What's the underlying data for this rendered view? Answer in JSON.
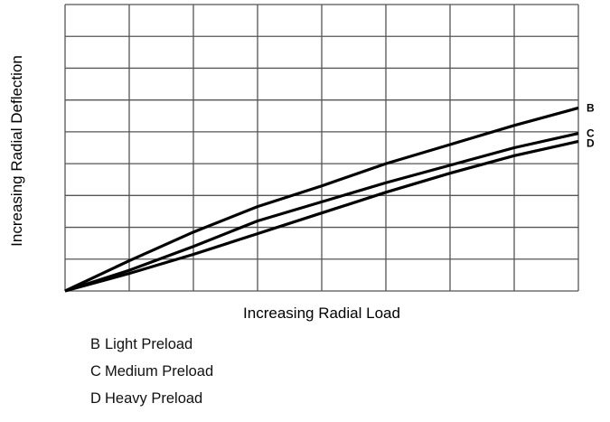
{
  "chart_data": {
    "type": "line",
    "xlabel": "Increasing Radial Load",
    "ylabel": "Increasing Radial Deflection",
    "xlim": [
      0,
      8
    ],
    "ylim": [
      0,
      9
    ],
    "grid": true,
    "x_ticks_labeled": false,
    "y_ticks_labeled": false,
    "series": [
      {
        "name": "B",
        "x": [
          0,
          1,
          2,
          3,
          4,
          5,
          6,
          7,
          8
        ],
        "y": [
          0,
          0.95,
          1.85,
          2.65,
          3.3,
          4.0,
          4.6,
          5.2,
          5.75
        ]
      },
      {
        "name": "C",
        "x": [
          0,
          1,
          2,
          3,
          4,
          5,
          6,
          7,
          8
        ],
        "y": [
          0,
          0.65,
          1.4,
          2.2,
          2.8,
          3.4,
          3.95,
          4.5,
          4.95
        ]
      },
      {
        "name": "D",
        "x": [
          0,
          1,
          2,
          3,
          4,
          5,
          6,
          7,
          8
        ],
        "y": [
          0,
          0.55,
          1.15,
          1.8,
          2.45,
          3.1,
          3.7,
          4.25,
          4.7
        ]
      }
    ]
  },
  "legend": [
    {
      "key": "B",
      "label": "Light Preload"
    },
    {
      "key": "C",
      "label": "Medium Preload"
    },
    {
      "key": "D",
      "label": "Heavy Preload"
    }
  ]
}
